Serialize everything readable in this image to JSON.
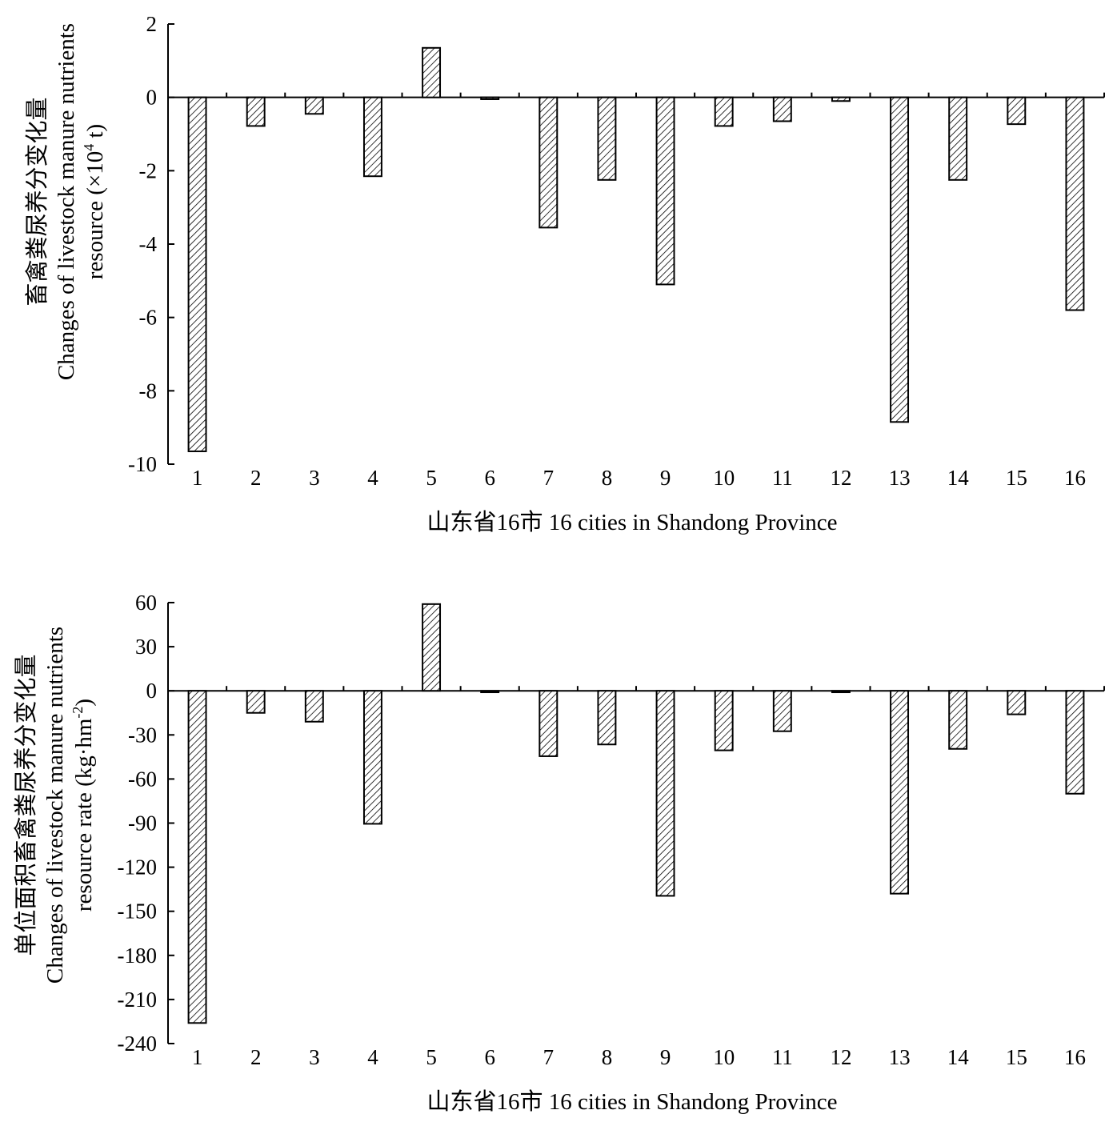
{
  "chart_data": [
    {
      "type": "bar",
      "title": "",
      "xlabel": "山东省16市 16 cities in Shandong Province",
      "ylabel_lines": [
        "畜禽粪尿养分变化量",
        "Changes of  livestock manure nutrients"
      ],
      "ylabel_unit_prefix": "resource (×10",
      "ylabel_unit_sup": "4",
      "ylabel_unit_suffix": " t)",
      "categories": [
        "1",
        "2",
        "3",
        "4",
        "5",
        "6",
        "7",
        "8",
        "9",
        "10",
        "11",
        "12",
        "13",
        "14",
        "15",
        "16"
      ],
      "values": [
        -9.65,
        -0.78,
        -0.45,
        -2.15,
        1.35,
        -0.05,
        -3.55,
        -2.25,
        -5.1,
        -0.78,
        -0.65,
        -0.1,
        -8.85,
        -2.25,
        -0.73,
        -5.8
      ],
      "ylim": [
        -10,
        2
      ],
      "yticks": [
        2,
        0,
        -2,
        -4,
        -6,
        -8,
        -10
      ],
      "ytick_labels": [
        "2",
        "0",
        "-2",
        "-4",
        "-6",
        "-8",
        "-10"
      ],
      "pattern": "diagonal-hatch",
      "grid": false
    },
    {
      "type": "bar",
      "title": "",
      "xlabel": "山东省16市 16 cities in Shandong Province",
      "ylabel_lines": [
        "单位面积畜禽粪尿养分变化量",
        "Changes of  livestock manure nutrients"
      ],
      "ylabel_unit_prefix": "resource rate (kg·hm",
      "ylabel_unit_sup": "-2",
      "ylabel_unit_suffix": ")",
      "categories": [
        "1",
        "2",
        "3",
        "4",
        "5",
        "6",
        "7",
        "8",
        "9",
        "10",
        "11",
        "12",
        "13",
        "14",
        "15",
        "16"
      ],
      "values": [
        -226,
        -15,
        -21,
        -90.5,
        59,
        -1,
        -44.5,
        -36.5,
        -139.5,
        -40.5,
        -27.5,
        -1,
        -138,
        -39.5,
        -16,
        -70
      ],
      "ylim": [
        -240,
        60
      ],
      "yticks": [
        60,
        30,
        0,
        -30,
        -60,
        -90,
        -120,
        -150,
        -180,
        -210,
        -240
      ],
      "ytick_labels": [
        "60",
        "30",
        "0",
        "-30",
        "-60",
        "-90",
        "-120",
        "-150",
        "-180",
        "-210",
        "-240"
      ],
      "pattern": "diagonal-hatch",
      "grid": false
    }
  ]
}
